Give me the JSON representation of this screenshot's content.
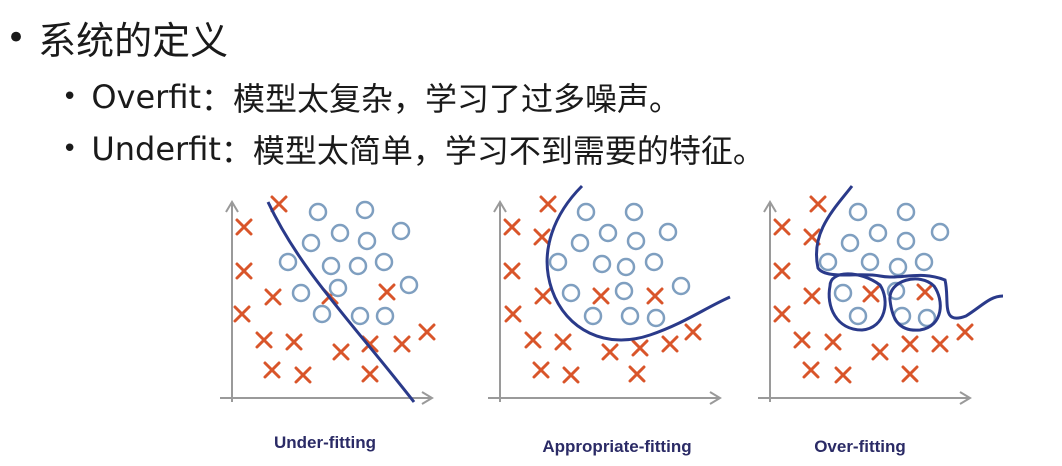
{
  "heading": {
    "bullet": "•",
    "text": "系统的定义"
  },
  "items": [
    {
      "bullet": "•",
      "term": "Overfit",
      "sep": "：",
      "desc": "模型太复杂，学习了过多噪声。"
    },
    {
      "bullet": "•",
      "term": "Underfit",
      "sep": "：",
      "desc": "模型太简单，学习不到需要的特征。"
    }
  ],
  "figures": {
    "colors": {
      "cross": "#d9552a",
      "circle": "#7f9fc0",
      "curve": "#2a3a8a",
      "axis": "#9a9a9a",
      "caption": "#2b2b66"
    },
    "panels": [
      {
        "caption": "Under-fitting"
      },
      {
        "caption": "Appropriate-fitting"
      },
      {
        "caption": "Over-fitting"
      }
    ]
  }
}
